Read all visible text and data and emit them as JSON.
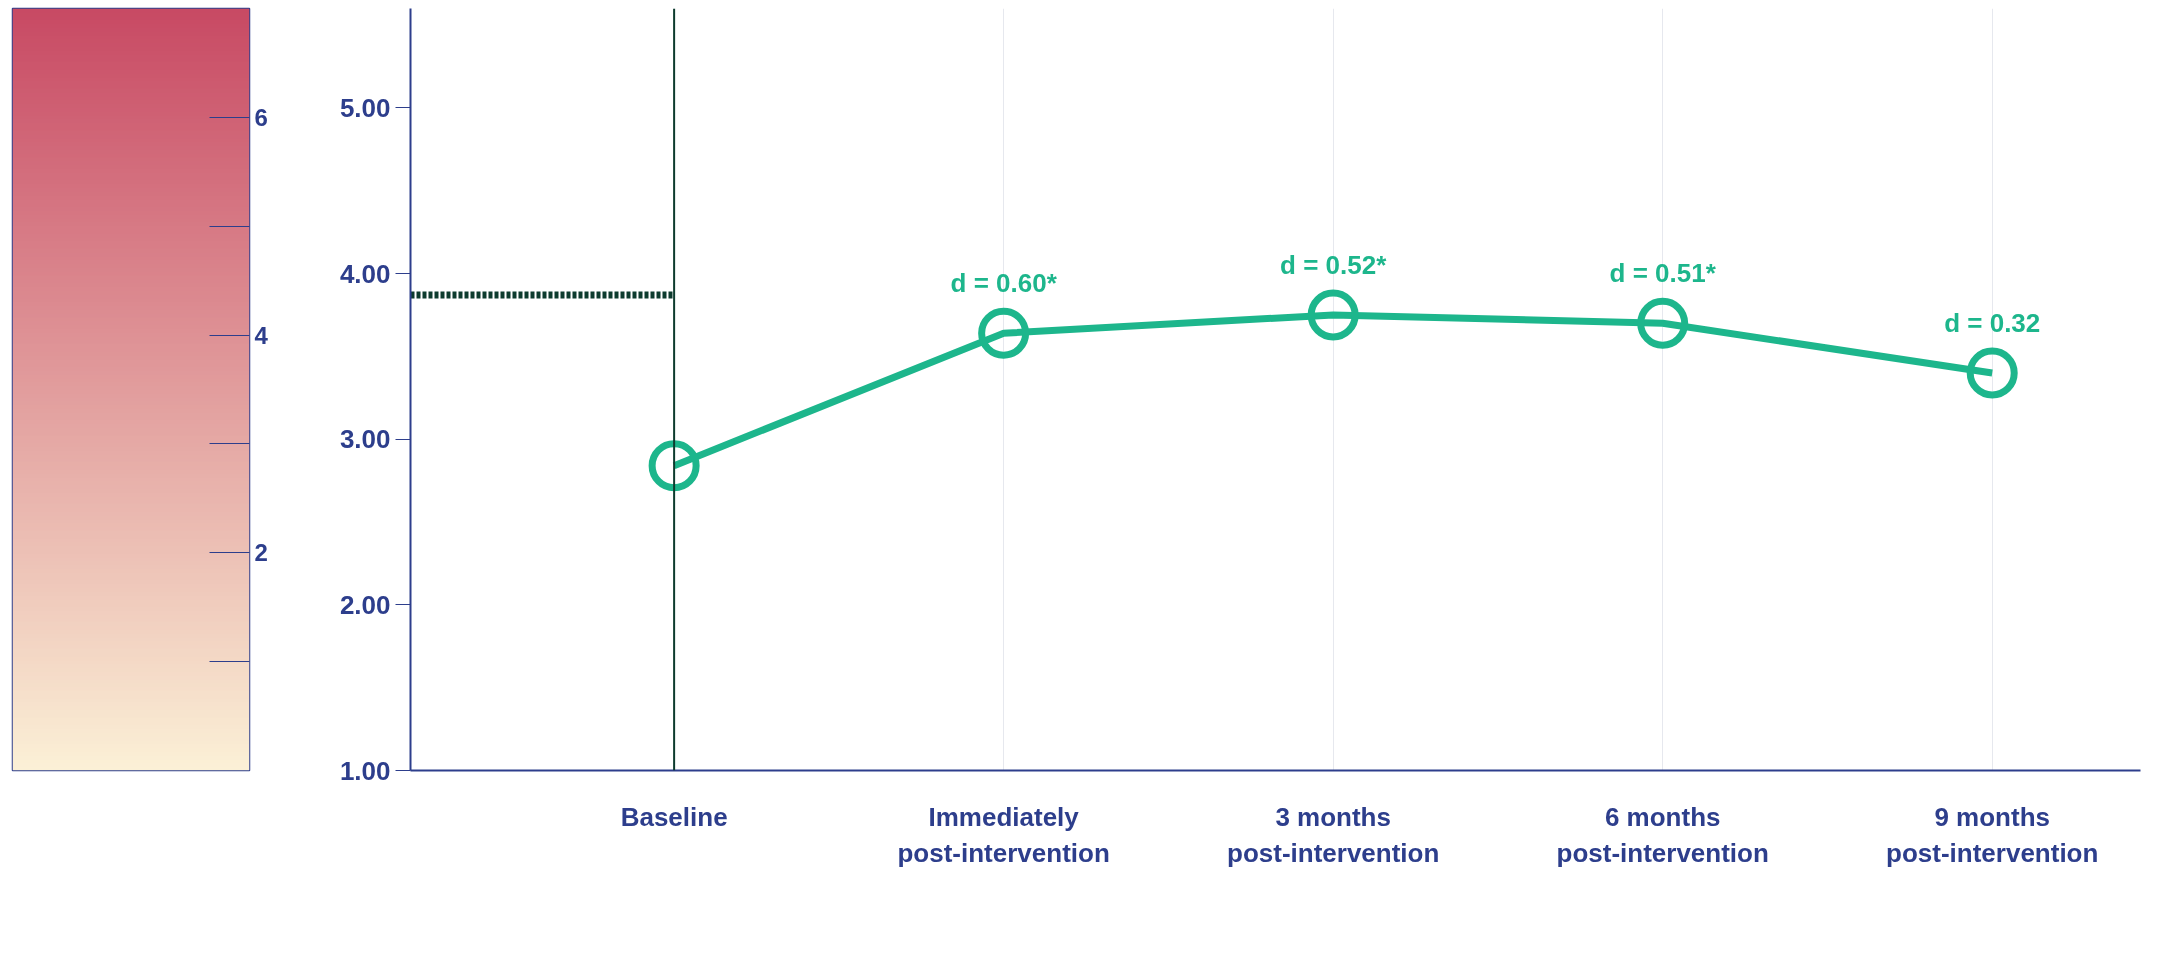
{
  "chart_data": {
    "type": "line",
    "categories": [
      "Baseline",
      "Immediately\npost-intervention",
      "3 months\npost-intervention",
      "6 months\npost-intervention",
      "9 months\npost-intervention"
    ],
    "series": [
      {
        "color": "#1db68c",
        "values": [
          2.84,
          3.64,
          3.75,
          3.7,
          3.4
        ]
      }
    ],
    "ylim": [
      1,
      5.6
    ],
    "yticks": [
      {
        "value": 1,
        "label": "1.00"
      },
      {
        "value": 2,
        "label": "2.00"
      },
      {
        "value": 3,
        "label": "3.00"
      },
      {
        "value": 4,
        "label": "4.00"
      },
      {
        "value": 5,
        "label": "5.00"
      }
    ],
    "clim": [
      0,
      7
    ],
    "cticks": [
      {
        "value": 1,
        "label": null
      },
      2,
      {
        "value": 3,
        "label": null
      },
      4,
      {
        "value": 5,
        "label": null
      },
      6
    ],
    "marker": "circle",
    "grid": "x",
    "ref_lines": [
      {
        "axis": "x",
        "value": "Baseline",
        "color": "#0d3b2e",
        "line_style": "solid"
      },
      {
        "axis": "y",
        "value": 3.87,
        "color": "#0d3b2e",
        "line_style": "dashed"
      }
    ],
    "annotations": [
      {
        "text": "d = 0.60*",
        "x": "Immediately\npost-intervention",
        "y": 3.64
      },
      {
        "text": "d = 0.52*",
        "x": "3 months\npost-intervention",
        "y": 3.75
      },
      {
        "text": "d = 0.51*",
        "x": "6 months\npost-intervention",
        "y": 3.7
      },
      {
        "text": "d = 0.32",
        "x": "9 months\npost-intervention",
        "y": 3.4
      }
    ]
  }
}
